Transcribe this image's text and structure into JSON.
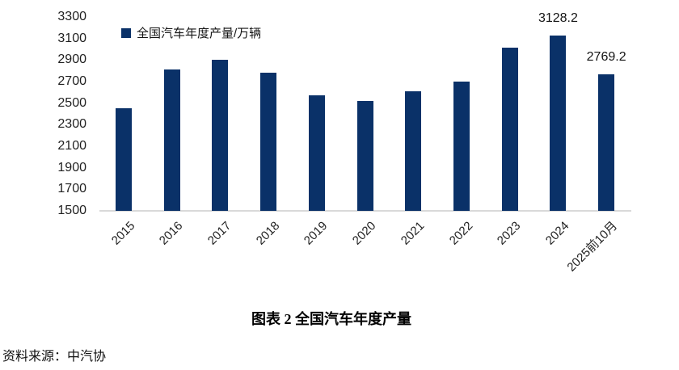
{
  "figure": {
    "caption": "图表 2  全国汽车年度产量",
    "source": "资料来源：中汽协"
  },
  "chart_data": {
    "type": "bar",
    "title": "图表 2  全国汽车年度产量",
    "legend": [
      "全国汽车年度产量/万辆"
    ],
    "legend_position": "top-left-inside",
    "categories": [
      "2015",
      "2016",
      "2017",
      "2018",
      "2019",
      "2020",
      "2021",
      "2022",
      "2023",
      "2024",
      "2025前10月"
    ],
    "values": [
      2450.3,
      2811.9,
      2901.5,
      2780.9,
      2572.1,
      2522.5,
      2608.2,
      2702.1,
      3016.1,
      3128.2,
      2769.2
    ],
    "point_labels": [
      "",
      "",
      "",
      "",
      "",
      "",
      "",
      "",
      "",
      "3128.2",
      "2769.2"
    ],
    "ylim": [
      1500,
      3300
    ],
    "y_tick_step": 200,
    "y_ticks": [
      3300,
      3100,
      2900,
      2700,
      2500,
      2300,
      2100,
      1900,
      1700,
      1500
    ],
    "xlabel": "",
    "ylabel": "",
    "grid": false,
    "bar_color": "#0a3168",
    "axis_line_color": "#d9d9d9",
    "source": "资料来源：中汽协"
  }
}
